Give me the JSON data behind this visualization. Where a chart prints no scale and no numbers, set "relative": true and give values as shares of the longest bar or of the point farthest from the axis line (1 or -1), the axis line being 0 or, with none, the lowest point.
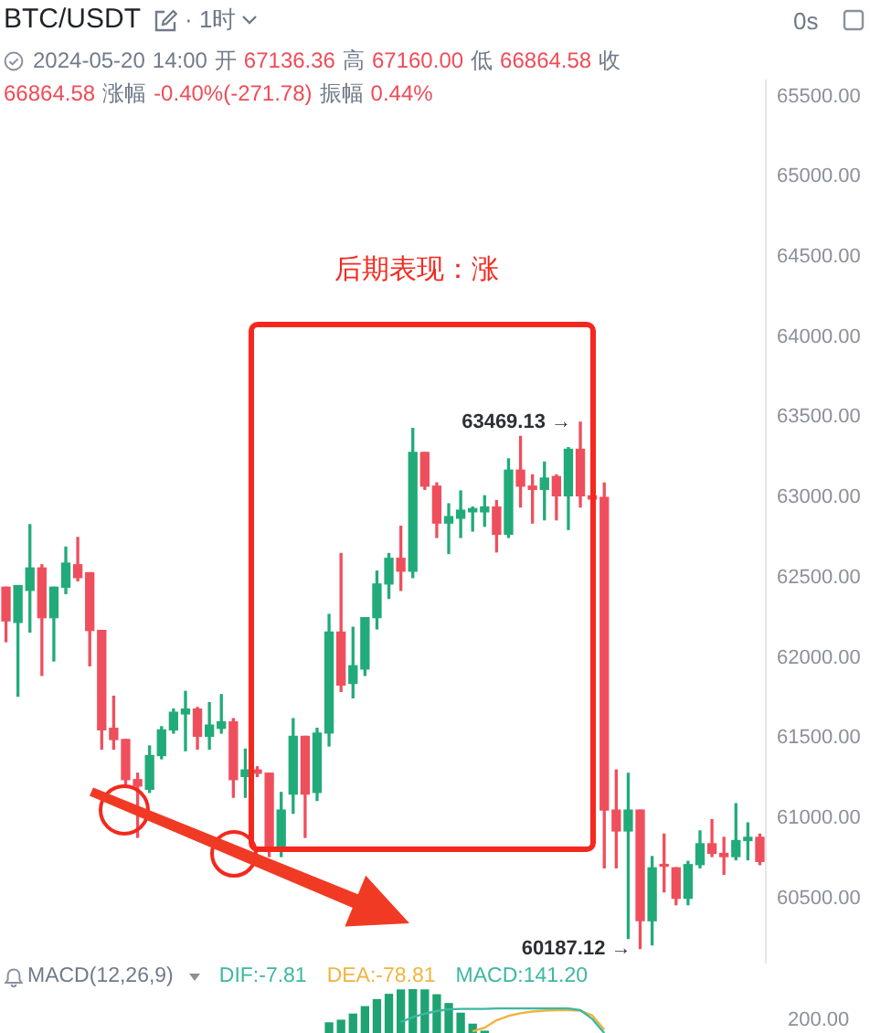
{
  "chart_data": [
    {
      "type": "candlestick",
      "title": "BTC/USDT",
      "annotations": [
        "· 1时",
        "0s",
        "2024-05-20 14:00 开 67136.36 高 67160.00 低 66864.58 收",
        "66864.58 涨幅 -0.40%(-271.78) 振幅 0.44%",
        "后期表现：涨",
        "63469.13 →",
        "60187.12 →"
      ],
      "categories": [
        null,
        null,
        null,
        null,
        null,
        null,
        null,
        null,
        null,
        null,
        null,
        null,
        null,
        null,
        null,
        null,
        null,
        null,
        null,
        null,
        null,
        null,
        null,
        null,
        null,
        null,
        null,
        null,
        null,
        null,
        null,
        null,
        null,
        null,
        null,
        null,
        null,
        null,
        null,
        null,
        null,
        null,
        null,
        null,
        null,
        null,
        null,
        null,
        null,
        null,
        null,
        null,
        null,
        null,
        null,
        null,
        null,
        null,
        null,
        null,
        null,
        null,
        null,
        null
      ],
      "ohlc": [
        [
          62440,
          62440,
          62100,
          62230
        ],
        [
          62220,
          62450,
          61760,
          62450
        ],
        [
          62420,
          62830,
          62160,
          62560
        ],
        [
          62560,
          62580,
          61890,
          62250
        ],
        [
          62250,
          62440,
          61980,
          62440
        ],
        [
          62440,
          62690,
          62400,
          62590
        ],
        [
          62580,
          62750,
          62480,
          62500
        ],
        [
          62530,
          62530,
          61950,
          62170
        ],
        [
          62170,
          62170,
          61430,
          61550
        ],
        [
          61560,
          61760,
          61430,
          61490
        ],
        [
          61490,
          61490,
          61200,
          61240
        ],
        [
          61240,
          61280,
          60880,
          61200
        ],
        [
          61180,
          61450,
          61160,
          61390
        ],
        [
          61390,
          61570,
          61370,
          61550
        ],
        [
          61550,
          61680,
          61530,
          61660
        ],
        [
          61650,
          61790,
          61420,
          61680
        ],
        [
          61680,
          61690,
          61430,
          61510
        ],
        [
          61510,
          61720,
          61430,
          61580
        ],
        [
          61560,
          61770,
          61530,
          61600
        ],
        [
          61600,
          61620,
          61130,
          61240
        ],
        [
          61260,
          61430,
          61130,
          61300
        ],
        [
          61300,
          61320,
          61260,
          61280
        ],
        [
          61280,
          61280,
          60760,
          60820
        ],
        [
          60820,
          61160,
          60760,
          61050
        ],
        [
          61150,
          61620,
          61030,
          61510
        ],
        [
          61510,
          61510,
          60880,
          61150
        ],
        [
          61160,
          61560,
          61110,
          61530
        ],
        [
          61530,
          62270,
          61450,
          62160
        ],
        [
          62160,
          62650,
          61790,
          61830
        ],
        [
          61840,
          62190,
          61750,
          61950
        ],
        [
          61930,
          62250,
          61890,
          62250
        ],
        [
          62250,
          62540,
          62180,
          62460
        ],
        [
          62460,
          62650,
          62370,
          62620
        ],
        [
          62620,
          62820,
          62420,
          62540
        ],
        [
          62540,
          63430,
          62500,
          63280
        ],
        [
          63280,
          63280,
          63050,
          63070
        ],
        [
          63070,
          63090,
          62750,
          62840
        ],
        [
          62840,
          62960,
          62650,
          62880
        ],
        [
          62870,
          63040,
          62750,
          62920
        ],
        [
          62910,
          62940,
          62790,
          62930
        ],
        [
          62910,
          63010,
          62820,
          62940
        ],
        [
          62940,
          62980,
          62660,
          62770
        ],
        [
          62770,
          63240,
          62750,
          63170
        ],
        [
          63170,
          63380,
          62940,
          63070
        ],
        [
          63070,
          63140,
          62840,
          63050
        ],
        [
          63050,
          63220,
          62860,
          63120
        ],
        [
          63130,
          63140,
          62860,
          63010
        ],
        [
          63010,
          63310,
          62800,
          63300
        ],
        [
          63300,
          63469.13,
          62940,
          63010
        ],
        [
          63010,
          63020,
          62990,
          62990
        ],
        [
          63000,
          63090,
          60690,
          61050
        ],
        [
          61050,
          61300,
          60690,
          60920
        ],
        [
          60920,
          61280,
          60250,
          61050
        ],
        [
          61050,
          61050,
          60187.12,
          60360
        ],
        [
          60360,
          60760,
          60210,
          60690
        ],
        [
          60710,
          60900,
          60540,
          60700
        ],
        [
          60690,
          60690,
          60460,
          60500
        ],
        [
          60500,
          60730,
          60460,
          60710
        ],
        [
          60710,
          60920,
          60690,
          60840
        ],
        [
          60840,
          60990,
          60760,
          60780
        ],
        [
          60780,
          60880,
          60650,
          60760
        ],
        [
          60760,
          61090,
          60740,
          60860
        ],
        [
          60860,
          60970,
          60740,
          60880
        ],
        [
          60880,
          60900,
          60710,
          60730
        ]
      ],
      "colors": [
        "#ef4f5c",
        "#22ab7a",
        "#22ab7a",
        "#ef4f5c",
        "#22ab7a",
        "#22ab7a",
        "#ef4f5c",
        "#ef4f5c",
        "#ef4f5c",
        "#ef4f5c",
        "#ef4f5c",
        "#ef4f5c",
        "#22ab7a",
        "#22ab7a",
        "#22ab7a",
        "#22ab7a",
        "#ef4f5c",
        "#22ab7a",
        "#22ab7a",
        "#ef4f5c",
        "#22ab7a",
        "#ef4f5c",
        "#ef4f5c",
        "#22ab7a",
        "#22ab7a",
        "#ef4f5c",
        "#22ab7a",
        "#22ab7a",
        "#ef4f5c",
        "#22ab7a",
        "#22ab7a",
        "#22ab7a",
        "#22ab7a",
        "#ef4f5c",
        "#22ab7a",
        "#ef4f5c",
        "#ef4f5c",
        "#22ab7a",
        "#22ab7a",
        "#22ab7a",
        "#22ab7a",
        "#ef4f5c",
        "#22ab7a",
        "#ef4f5c",
        "#ef4f5c",
        "#22ab7a",
        "#ef4f5c",
        "#22ab7a",
        "#ef4f5c",
        "#ef4f5c",
        "#ef4f5c",
        "#ef4f5c",
        "#22ab7a",
        "#ef4f5c",
        "#22ab7a",
        "#ef4f5c",
        "#ef4f5c",
        "#22ab7a",
        "#22ab7a",
        "#ef4f5c",
        "#ef4f5c",
        "#22ab7a",
        "#22ab7a",
        "#ef4f5c"
      ],
      "ylim": [
        60100,
        65600
      ],
      "yticks": [
        {
          "value": 60500,
          "label": "60500.00"
        },
        {
          "value": 61000,
          "label": "61000.00"
        },
        {
          "value": 61500,
          "label": "61500.00"
        },
        {
          "value": 62000,
          "label": "62000.00"
        },
        {
          "value": 62500,
          "label": "62500.00"
        },
        {
          "value": 63000,
          "label": "63000.00"
        },
        {
          "value": 63500,
          "label": "63500.00"
        },
        {
          "value": 64000,
          "label": "64000.00"
        },
        {
          "value": 64500,
          "label": "64500.00"
        },
        {
          "value": 65000,
          "label": "65000.00"
        },
        {
          "value": 65500,
          "label": "65500.00"
        }
      ]
    },
    {
      "type": "bar",
      "title": "MACD(12,26,9)",
      "annotations": [
        "DIF:-7.81",
        "DEA:-78.81",
        "MACD:141.20",
        "200.00"
      ],
      "relative": true,
      "categories": [
        null,
        null,
        null,
        null,
        null,
        null,
        null,
        null,
        null,
        null,
        null,
        null,
        null,
        null,
        null,
        null,
        null,
        null,
        null,
        null,
        null,
        null,
        null,
        null,
        null,
        null,
        null,
        null,
        null,
        null,
        null,
        null,
        null,
        null,
        null,
        null,
        null,
        null,
        null,
        null,
        null,
        null,
        null,
        null,
        null,
        null,
        null,
        null,
        null,
        null,
        null,
        null,
        null,
        null,
        null,
        null,
        null,
        null,
        null,
        null,
        null,
        null,
        null,
        null
      ],
      "series": [
        {
          "type": "bar",
          "color": "#1fa372",
          "values": [
            null,
            null,
            null,
            null,
            null,
            null,
            null,
            null,
            null,
            null,
            null,
            null,
            null,
            null,
            null,
            null,
            null,
            null,
            null,
            null,
            null,
            null,
            null,
            null,
            null,
            null,
            null,
            0.23,
            0.29,
            0.43,
            0.6,
            0.76,
            0.88,
            0.98,
            1,
            0.98,
            0.87,
            0.67,
            0.45,
            0.2,
            0.04,
            null,
            null,
            null,
            null,
            null,
            null,
            null,
            null,
            null,
            null,
            null,
            null,
            null,
            null,
            null,
            null,
            null,
            null,
            null,
            null,
            null,
            null,
            null
          ]
        },
        {
          "type": "line",
          "color": "#3cb8a0",
          "values": [
            null,
            null,
            null,
            null,
            null,
            null,
            null,
            null,
            null,
            null,
            null,
            null,
            null,
            null,
            null,
            null,
            null,
            null,
            null,
            null,
            null,
            null,
            null,
            null,
            null,
            null,
            null,
            null,
            null,
            null,
            null,
            null,
            null,
            0.25,
            0.36,
            0.44,
            0.5,
            0.54,
            0.55,
            0.55,
            0.55,
            0.56,
            0.56,
            0.56,
            0.56,
            0.56,
            0.56,
            0.56,
            0.52,
            0.32,
            0,
            null,
            null,
            null,
            null,
            null,
            null,
            null,
            null,
            null,
            null,
            null,
            null,
            null
          ]
        },
        {
          "type": "line",
          "color": "#f0b441",
          "values": [
            null,
            null,
            null,
            null,
            null,
            null,
            null,
            null,
            null,
            null,
            null,
            null,
            null,
            null,
            null,
            null,
            null,
            null,
            null,
            null,
            null,
            null,
            null,
            null,
            null,
            null,
            null,
            null,
            null,
            null,
            null,
            null,
            null,
            null,
            null,
            null,
            null,
            null,
            null,
            0.04,
            0.12,
            0.29,
            0.39,
            0.45,
            0.49,
            0.51,
            0.52,
            0.52,
            0.51,
            0.4,
            0.08,
            null,
            null,
            null,
            null,
            null,
            null,
            null,
            null,
            null,
            null,
            null,
            null,
            null
          ]
        }
      ]
    }
  ]
}
